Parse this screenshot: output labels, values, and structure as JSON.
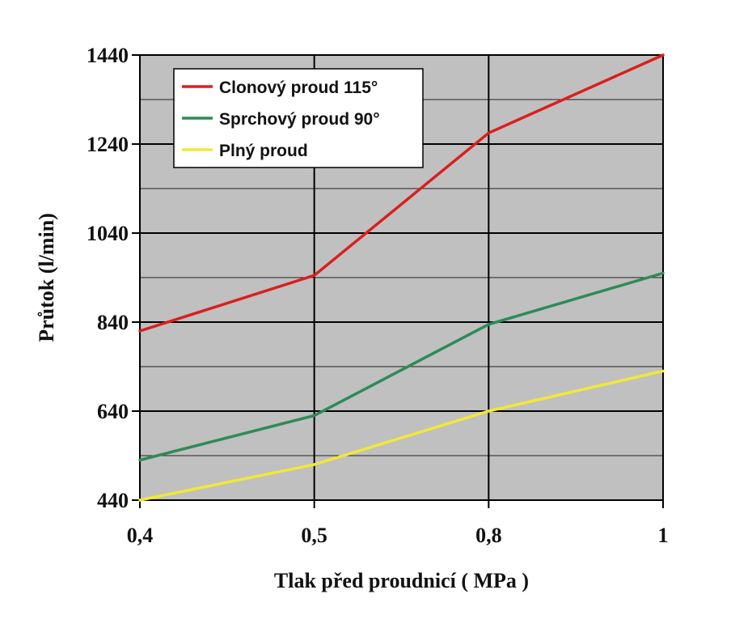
{
  "chart_data": {
    "type": "line",
    "title": "",
    "xlabel": "Tlak před proudnicí  ( MPa )",
    "ylabel": "Průtok (l/min)",
    "categories": [
      "0,4",
      "0,5",
      "0,8",
      "1"
    ],
    "ylim": [
      440,
      1440
    ],
    "yticks": [
      440,
      640,
      840,
      1040,
      1240,
      1440
    ],
    "y_minor_step": 100,
    "grid": true,
    "legend_position": "top-left",
    "plot_background": "#c0c0c0",
    "series": [
      {
        "name": "Clonový proud 115°",
        "color": "#d9201f",
        "values": [
          820,
          945,
          1265,
          1440
        ]
      },
      {
        "name": "Sprchový proud 90°",
        "color": "#2e8b57",
        "values": [
          530,
          630,
          835,
          950
        ]
      },
      {
        "name": "Plný proud",
        "color": "#f2e836",
        "values": [
          440,
          520,
          640,
          730
        ]
      }
    ]
  }
}
